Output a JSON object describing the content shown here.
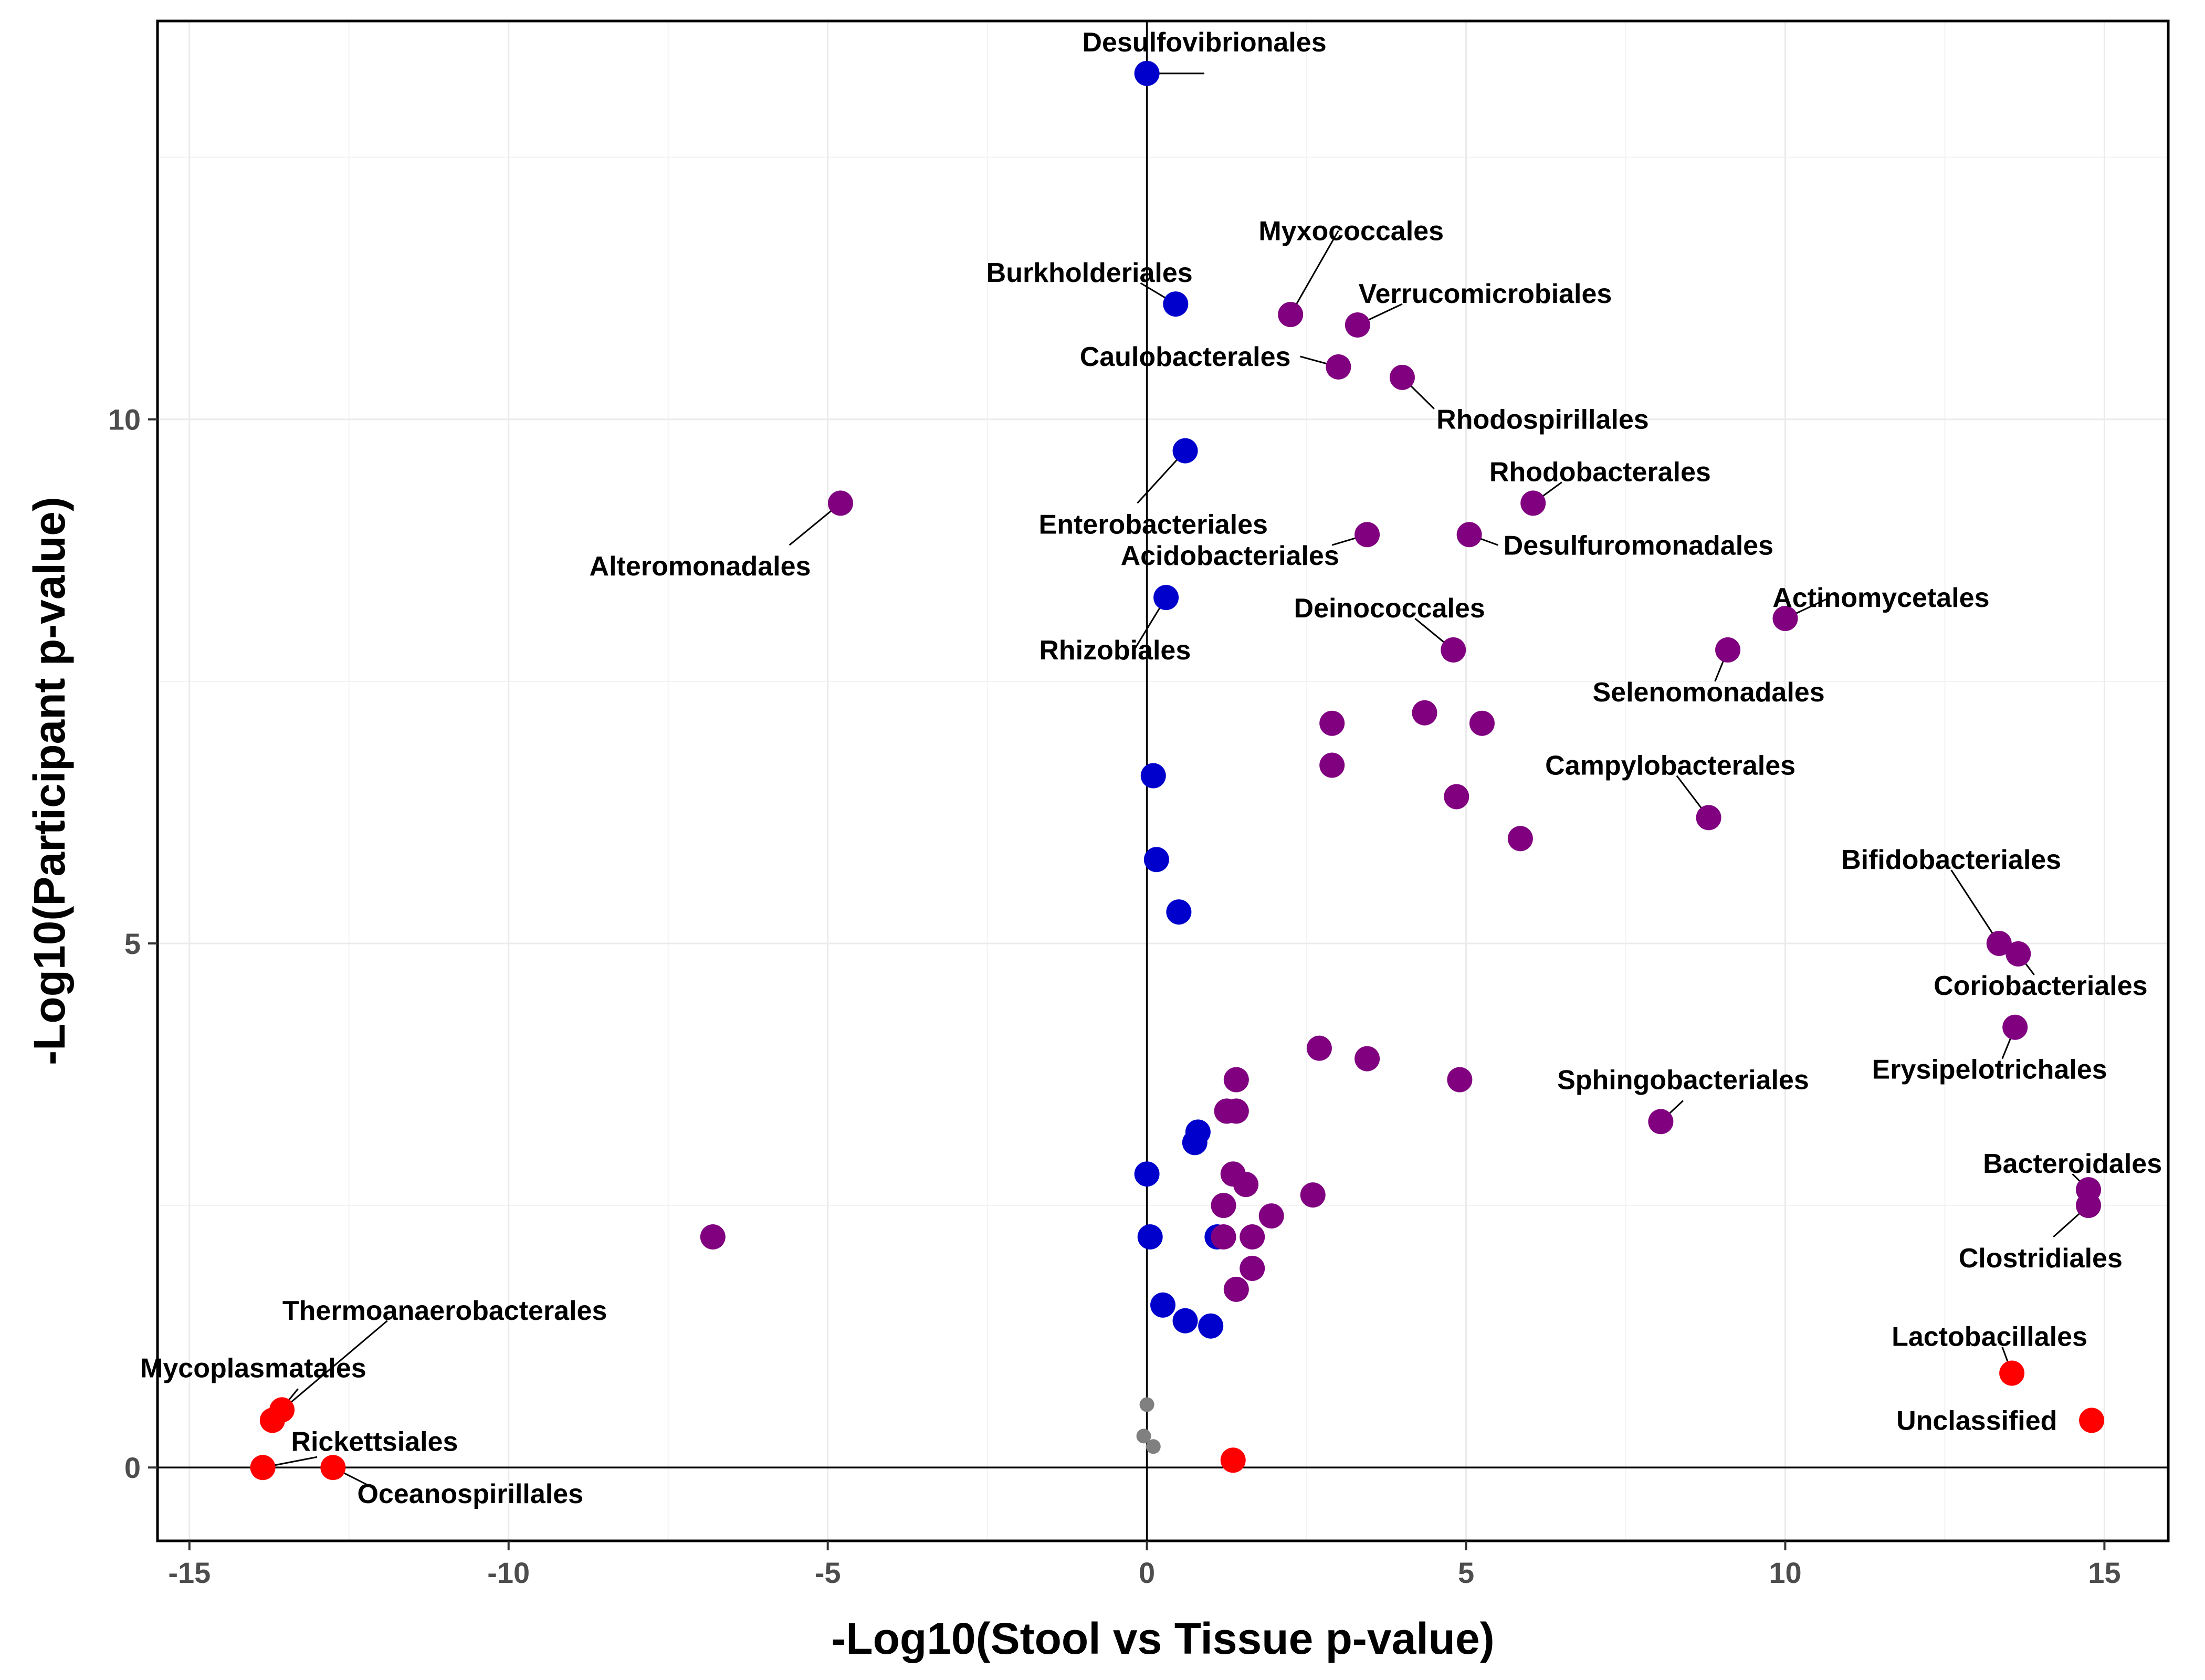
{
  "chart_data": {
    "type": "scatter",
    "title": "",
    "xlabel": "-Log10(Stool vs Tissue p-value)",
    "ylabel": "-Log10(Participant p-value)",
    "xlim": [
      -15.5,
      16.0
    ],
    "ylim": [
      -0.7,
      13.8
    ],
    "x_ticks": [
      -15,
      -10,
      -5,
      0,
      5,
      10,
      15
    ],
    "x_tick_labels": [
      "-15",
      "-10",
      "-5",
      "0",
      "5",
      "10",
      "15"
    ],
    "y_ticks": [
      0,
      5,
      10
    ],
    "y_tick_labels": [
      "0",
      "5",
      "10"
    ],
    "grid": true,
    "legend": "none",
    "colors": {
      "blue": "#0000cc",
      "purple": "#800080",
      "red": "#ff0000",
      "grey": "#808080"
    },
    "points": [
      {
        "x": 0.0,
        "y": 13.3,
        "color": "blue",
        "label": "Desulfovibrionales",
        "lx": 0.9,
        "ly": 13.3,
        "tx": 0.9,
        "ty": 13.6
      },
      {
        "x": 0.45,
        "y": 11.1,
        "color": "blue",
        "label": "Burkholderiales",
        "lx": -0.1,
        "ly": 11.3,
        "tx": -0.9,
        "ty": 11.4
      },
      {
        "x": 2.25,
        "y": 11.0,
        "color": "purple",
        "label": "Myxococcales",
        "lx": 3.0,
        "ly": 11.8,
        "tx": 3.2,
        "ty": 11.8
      },
      {
        "x": 3.3,
        "y": 10.9,
        "color": "purple",
        "label": "Verrucomicrobiales",
        "lx": 4.0,
        "ly": 11.1,
        "tx": 5.3,
        "ty": 11.2
      },
      {
        "x": 3.0,
        "y": 10.5,
        "color": "purple",
        "label": "Caulobacterales",
        "lx": 2.4,
        "ly": 10.6,
        "tx": 0.6,
        "ty": 10.6
      },
      {
        "x": 4.0,
        "y": 10.4,
        "color": "purple",
        "label": "Rhodospirillales",
        "lx": 4.5,
        "ly": 10.1,
        "tx": 6.2,
        "ty": 10.0
      },
      {
        "x": 0.6,
        "y": 9.7,
        "color": "blue",
        "label": "Enterobacteriales",
        "lx": -0.15,
        "ly": 9.2,
        "tx": 0.1,
        "ty": 9.0
      },
      {
        "x": -4.8,
        "y": 9.2,
        "color": "purple",
        "label": "Alteromonadales",
        "lx": -5.6,
        "ly": 8.8,
        "tx": -7.0,
        "ty": 8.6
      },
      {
        "x": 6.05,
        "y": 9.2,
        "color": "purple",
        "label": "Rhodobacterales",
        "lx": 6.5,
        "ly": 9.4,
        "tx": 7.1,
        "ty": 9.5
      },
      {
        "x": 3.45,
        "y": 8.9,
        "color": "purple",
        "label": "Acidobacteriales",
        "lx": 2.9,
        "ly": 8.8,
        "tx": 1.3,
        "ty": 8.7
      },
      {
        "x": 5.05,
        "y": 8.9,
        "color": "purple",
        "label": "Desulfuromonadales",
        "lx": 5.5,
        "ly": 8.8,
        "tx": 7.7,
        "ty": 8.8
      },
      {
        "x": 0.3,
        "y": 8.3,
        "color": "blue",
        "label": "Rhizobiales",
        "lx": -0.2,
        "ly": 7.8,
        "tx": -0.5,
        "ty": 7.8
      },
      {
        "x": 10.0,
        "y": 8.1,
        "color": "purple",
        "label": "Actinomycetales",
        "lx": 10.7,
        "ly": 8.3,
        "tx": 11.5,
        "ty": 8.3
      },
      {
        "x": 4.8,
        "y": 7.8,
        "color": "purple",
        "label": "Deinococcales",
        "lx": 4.2,
        "ly": 8.1,
        "tx": 3.8,
        "ty": 8.2
      },
      {
        "x": 9.1,
        "y": 7.8,
        "color": "purple",
        "label": "Selenomonadales",
        "lx": 8.9,
        "ly": 7.5,
        "tx": 8.8,
        "ty": 7.4
      },
      {
        "x": 2.9,
        "y": 7.1,
        "color": "purple"
      },
      {
        "x": 4.35,
        "y": 7.2,
        "color": "purple"
      },
      {
        "x": 5.25,
        "y": 7.1,
        "color": "purple"
      },
      {
        "x": 0.1,
        "y": 6.6,
        "color": "blue"
      },
      {
        "x": 2.9,
        "y": 6.7,
        "color": "purple"
      },
      {
        "x": 8.8,
        "y": 6.2,
        "color": "purple",
        "label": "Campylobacterales",
        "lx": 8.3,
        "ly": 6.6,
        "tx": 8.2,
        "ty": 6.7
      },
      {
        "x": 4.85,
        "y": 6.4,
        "color": "purple"
      },
      {
        "x": 5.85,
        "y": 6.0,
        "color": "purple"
      },
      {
        "x": 0.15,
        "y": 5.8,
        "color": "blue"
      },
      {
        "x": 0.5,
        "y": 5.3,
        "color": "blue"
      },
      {
        "x": 13.35,
        "y": 5.0,
        "color": "purple",
        "label": "Bifidobacteriales",
        "lx": 12.6,
        "ly": 5.7,
        "tx": 12.6,
        "ty": 5.8
      },
      {
        "x": 13.65,
        "y": 4.9,
        "color": "purple",
        "label": "Coriobacteriales",
        "lx": 13.9,
        "ly": 4.7,
        "tx": 14.0,
        "ty": 4.6
      },
      {
        "x": 13.6,
        "y": 4.2,
        "color": "purple",
        "label": "Erysipelotrichales",
        "lx": 13.4,
        "ly": 3.9,
        "tx": 13.2,
        "ty": 3.8
      },
      {
        "x": 2.7,
        "y": 4.0,
        "color": "purple"
      },
      {
        "x": 3.45,
        "y": 3.9,
        "color": "purple"
      },
      {
        "x": 1.4,
        "y": 3.7,
        "color": "purple"
      },
      {
        "x": 4.9,
        "y": 3.7,
        "color": "purple"
      },
      {
        "x": 1.25,
        "y": 3.4,
        "color": "purple"
      },
      {
        "x": 1.4,
        "y": 3.4,
        "color": "purple"
      },
      {
        "x": 8.05,
        "y": 3.3,
        "color": "purple",
        "label": "Sphingobacteriales",
        "lx": 8.4,
        "ly": 3.5,
        "tx": 8.4,
        "ty": 3.7
      },
      {
        "x": 0.8,
        "y": 3.2,
        "color": "blue"
      },
      {
        "x": 0.75,
        "y": 3.1,
        "color": "blue"
      },
      {
        "x": 0.0,
        "y": 2.8,
        "color": "blue"
      },
      {
        "x": 1.35,
        "y": 2.8,
        "color": "purple"
      },
      {
        "x": 1.55,
        "y": 2.7,
        "color": "purple"
      },
      {
        "x": 14.75,
        "y": 2.65,
        "color": "purple",
        "label": "Bacteroidales",
        "lx": 14.5,
        "ly": 2.8,
        "tx": 14.5,
        "ty": 2.9
      },
      {
        "x": 14.75,
        "y": 2.5,
        "color": "purple",
        "label": "Clostridiales",
        "lx": 14.2,
        "ly": 2.2,
        "tx": 14.0,
        "ty": 2.0
      },
      {
        "x": 2.6,
        "y": 2.6,
        "color": "purple"
      },
      {
        "x": 1.2,
        "y": 2.5,
        "color": "purple"
      },
      {
        "x": 1.95,
        "y": 2.4,
        "color": "purple"
      },
      {
        "x": -6.8,
        "y": 2.2,
        "color": "purple"
      },
      {
        "x": 0.05,
        "y": 2.2,
        "color": "blue"
      },
      {
        "x": 1.1,
        "y": 2.2,
        "color": "blue"
      },
      {
        "x": 1.2,
        "y": 2.2,
        "color": "purple"
      },
      {
        "x": 1.65,
        "y": 2.2,
        "color": "purple"
      },
      {
        "x": 1.65,
        "y": 1.9,
        "color": "purple"
      },
      {
        "x": 1.4,
        "y": 1.7,
        "color": "purple"
      },
      {
        "x": 0.25,
        "y": 1.55,
        "color": "blue"
      },
      {
        "x": 0.6,
        "y": 1.4,
        "color": "blue"
      },
      {
        "x": 1.0,
        "y": 1.35,
        "color": "blue"
      },
      {
        "x": -13.55,
        "y": 0.55,
        "color": "red",
        "label": "Thermoanaerobacterales",
        "lx": -11.9,
        "ly": 1.4,
        "tx": -11.0,
        "ty": 1.5
      },
      {
        "x": -13.7,
        "y": 0.45,
        "color": "red",
        "label": "Mycoplasmatales",
        "lx": -13.3,
        "ly": 0.75,
        "tx": -14.0,
        "ty": 0.95
      },
      {
        "x": 13.55,
        "y": 0.9,
        "color": "red",
        "label": "Lactobacillales",
        "lx": 13.4,
        "ly": 1.15,
        "tx": 13.2,
        "ty": 1.25
      },
      {
        "x": 14.8,
        "y": 0.45,
        "color": "red",
        "label": "Unclassified",
        "lx": 14.6,
        "ly": 0.45,
        "tx": 13.0,
        "ty": 0.45
      },
      {
        "x": -13.85,
        "y": 0.0,
        "color": "red",
        "label": "Rickettsiales",
        "lx": -13.0,
        "ly": 0.1,
        "tx": -12.1,
        "ty": 0.25
      },
      {
        "x": -12.75,
        "y": 0.0,
        "color": "red",
        "label": "Oceanospirillales",
        "lx": -12.1,
        "ly": -0.2,
        "tx": -10.6,
        "ty": -0.25
      },
      {
        "x": 1.35,
        "y": 0.07,
        "color": "red"
      },
      {
        "x": 0.0,
        "y": 0.6,
        "color": "grey",
        "small": true
      },
      {
        "x": -0.05,
        "y": 0.3,
        "color": "grey",
        "small": true
      },
      {
        "x": 0.1,
        "y": 0.2,
        "color": "grey",
        "small": true
      }
    ]
  }
}
